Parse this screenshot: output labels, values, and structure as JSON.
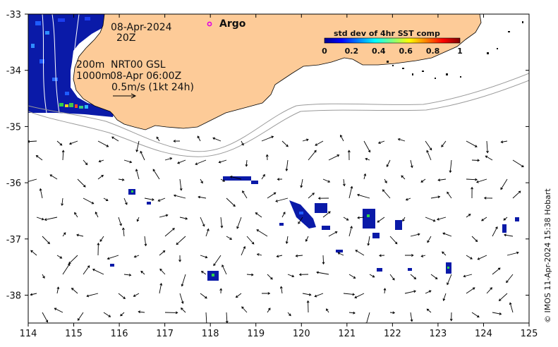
{
  "map": {
    "date_label": "08-Apr-2024",
    "time_label": "20Z",
    "depth_200": "200m",
    "depth_1000": "1000m",
    "product_label": "NRT00 GSL",
    "product_time": "08-Apr 06:00Z",
    "scale_label": "0.5m/s (1kt 24h)",
    "argo_label": "Argo",
    "credit": "© IMOS 11-Apr-2024 15:38 Hobart"
  },
  "axes": {
    "x_ticks": [
      "114",
      "115",
      "116",
      "117",
      "118",
      "119",
      "120",
      "121",
      "122",
      "123",
      "124",
      "125"
    ],
    "y_ticks": [
      "-33",
      "-34",
      "-35",
      "-36",
      "-37",
      "-38"
    ]
  },
  "colorbar": {
    "title": "std dev of 4hr SST comp",
    "ticks": [
      "0",
      "0.2",
      "0.4",
      "0.6",
      "0.8",
      "1"
    ]
  },
  "colors": {
    "land": "#fdcb98",
    "isobath": "#9a9a9a",
    "argo_marker": "#e000e0"
  }
}
